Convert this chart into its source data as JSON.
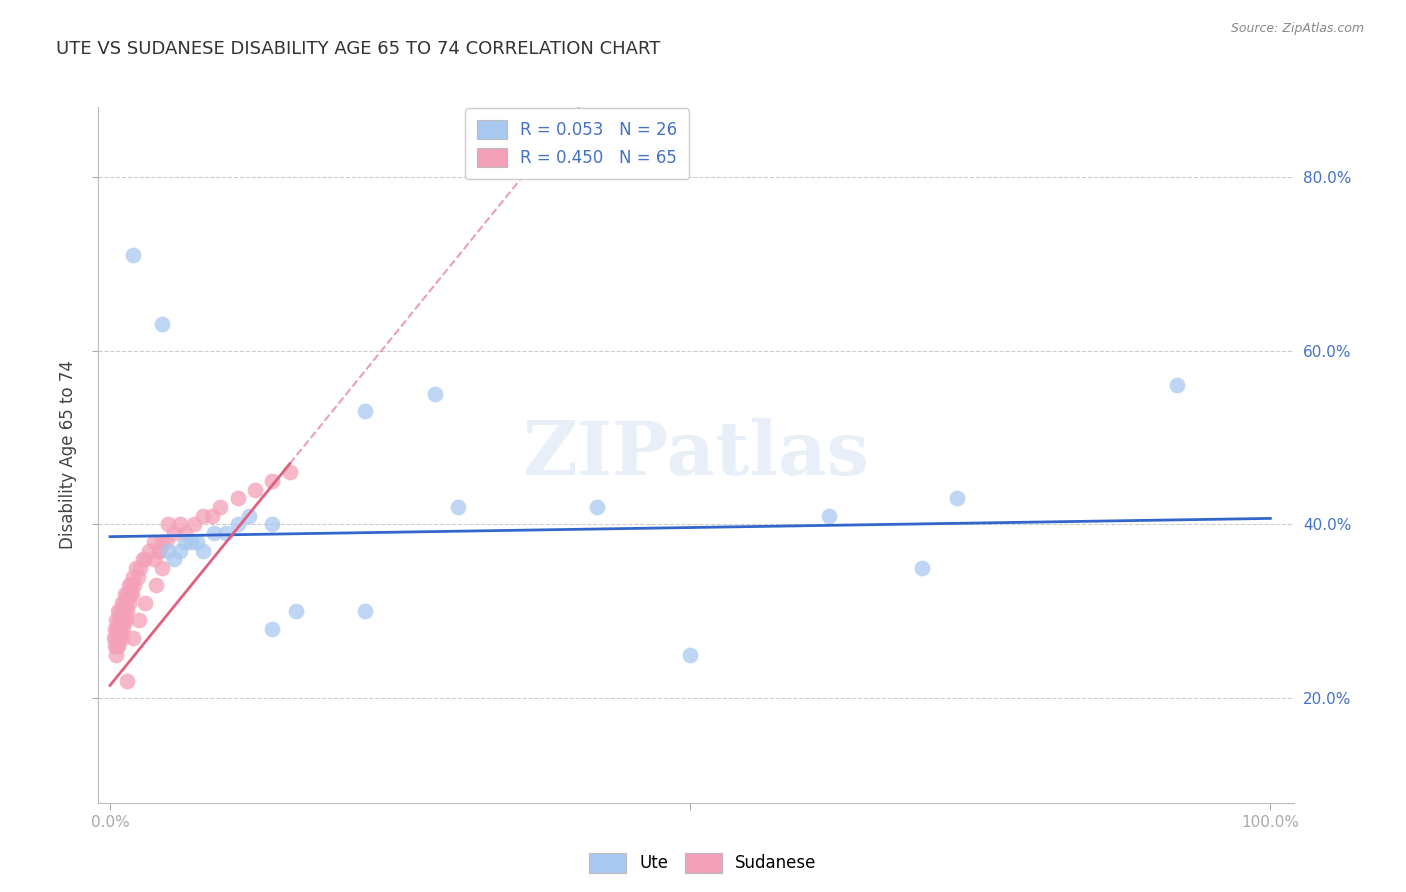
{
  "title": "UTE VS SUDANESE DISABILITY AGE 65 TO 74 CORRELATION CHART",
  "source": "Source: ZipAtlas.com",
  "ylabel": "Disability Age 65 to 74",
  "watermark": "ZIPatlas",
  "xlim": [
    -0.01,
    1.02
  ],
  "ylim": [
    0.08,
    0.88
  ],
  "yticks": [
    0.2,
    0.4,
    0.6,
    0.8
  ],
  "ytick_labels": [
    "20.0%",
    "40.0%",
    "60.0%",
    "80.0%"
  ],
  "xticks": [
    0.0,
    0.5,
    1.0
  ],
  "xtick_labels": [
    "0.0%",
    "",
    "100.0%"
  ],
  "legend_ute_R": "R = 0.053",
  "legend_ute_N": "N = 26",
  "legend_sud_R": "R = 0.450",
  "legend_sud_N": "N = 65",
  "ute_color": "#a8c8f0",
  "sud_color": "#f4a0b8",
  "trend_ute_color": "#3366cc",
  "trend_sud_color": "#e06080",
  "background_color": "#ffffff",
  "grid_color": "#cccccc",
  "title_color": "#333333",
  "axis_label_color": "#444444",
  "tick_label_color": "#4472c4",
  "ute_points_x": [
    0.02,
    0.045,
    0.05,
    0.055,
    0.06,
    0.065,
    0.07,
    0.075,
    0.08,
    0.09,
    0.1,
    0.11,
    0.12,
    0.14,
    0.16,
    0.22,
    0.28,
    0.3,
    0.42,
    0.5,
    0.62,
    0.7,
    0.73,
    0.92,
    0.22,
    0.14
  ],
  "ute_points_y": [
    0.71,
    0.63,
    0.37,
    0.36,
    0.37,
    0.38,
    0.38,
    0.38,
    0.37,
    0.39,
    0.39,
    0.4,
    0.41,
    0.4,
    0.3,
    0.3,
    0.55,
    0.42,
    0.42,
    0.25,
    0.41,
    0.35,
    0.43,
    0.56,
    0.53,
    0.28
  ],
  "sud_points_x": [
    0.003,
    0.004,
    0.004,
    0.005,
    0.005,
    0.005,
    0.006,
    0.006,
    0.007,
    0.007,
    0.007,
    0.008,
    0.008,
    0.009,
    0.009,
    0.01,
    0.01,
    0.01,
    0.011,
    0.011,
    0.012,
    0.012,
    0.013,
    0.013,
    0.014,
    0.014,
    0.015,
    0.015,
    0.016,
    0.016,
    0.017,
    0.018,
    0.019,
    0.02,
    0.021,
    0.022,
    0.024,
    0.026,
    0.028,
    0.03,
    0.034,
    0.038,
    0.042,
    0.048,
    0.055,
    0.06,
    0.065,
    0.072,
    0.08,
    0.088,
    0.095,
    0.11,
    0.125,
    0.14,
    0.155,
    0.045,
    0.05,
    0.02,
    0.025,
    0.03,
    0.04,
    0.045,
    0.038,
    0.042,
    0.015
  ],
  "sud_points_y": [
    0.27,
    0.26,
    0.28,
    0.25,
    0.27,
    0.29,
    0.26,
    0.28,
    0.26,
    0.28,
    0.3,
    0.27,
    0.29,
    0.28,
    0.3,
    0.27,
    0.29,
    0.31,
    0.28,
    0.3,
    0.29,
    0.31,
    0.3,
    0.32,
    0.29,
    0.31,
    0.3,
    0.32,
    0.31,
    0.33,
    0.32,
    0.33,
    0.32,
    0.34,
    0.33,
    0.35,
    0.34,
    0.35,
    0.36,
    0.36,
    0.37,
    0.38,
    0.37,
    0.38,
    0.39,
    0.4,
    0.39,
    0.4,
    0.41,
    0.41,
    0.42,
    0.43,
    0.44,
    0.45,
    0.46,
    0.38,
    0.4,
    0.27,
    0.29,
    0.31,
    0.33,
    0.35,
    0.36,
    0.37,
    0.22
  ],
  "trend_ute_x0": 0.0,
  "trend_ute_x1": 1.0,
  "trend_ute_y0": 0.386,
  "trend_ute_y1": 0.407,
  "trend_sud_solid_x0": 0.0,
  "trend_sud_solid_x1": 0.155,
  "trend_sud_y0": 0.215,
  "trend_sud_y1": 0.47,
  "trend_sud_dash_x0": 0.155,
  "trend_sud_dash_x1": 0.45
}
